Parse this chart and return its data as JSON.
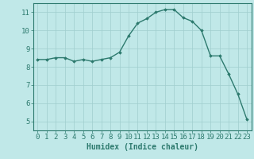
{
  "x": [
    0,
    1,
    2,
    3,
    4,
    5,
    6,
    7,
    8,
    9,
    10,
    11,
    12,
    13,
    14,
    15,
    16,
    17,
    18,
    19,
    20,
    21,
    22,
    23
  ],
  "y": [
    8.4,
    8.4,
    8.5,
    8.5,
    8.3,
    8.4,
    8.3,
    8.4,
    8.5,
    8.8,
    9.7,
    10.4,
    10.65,
    11.0,
    11.15,
    11.15,
    10.7,
    10.5,
    10.0,
    8.6,
    8.6,
    7.6,
    6.5,
    5.1
  ],
  "xlabel": "Humidex (Indice chaleur)",
  "ylim": [
    4.5,
    11.5
  ],
  "xlim": [
    -0.5,
    23.5
  ],
  "yticks": [
    5,
    6,
    7,
    8,
    9,
    10,
    11
  ],
  "xticks": [
    0,
    1,
    2,
    3,
    4,
    5,
    6,
    7,
    8,
    9,
    10,
    11,
    12,
    13,
    14,
    15,
    16,
    17,
    18,
    19,
    20,
    21,
    22,
    23
  ],
  "line_color": "#2d7a6e",
  "marker": "D",
  "marker_size": 1.8,
  "bg_color": "#c0e8e8",
  "grid_color": "#a0cece",
  "axis_color": "#2d7a6e",
  "tick_color": "#2d7a6e",
  "label_color": "#2d7a6e",
  "xlabel_fontsize": 7,
  "tick_fontsize": 6.5,
  "linewidth": 1.0
}
